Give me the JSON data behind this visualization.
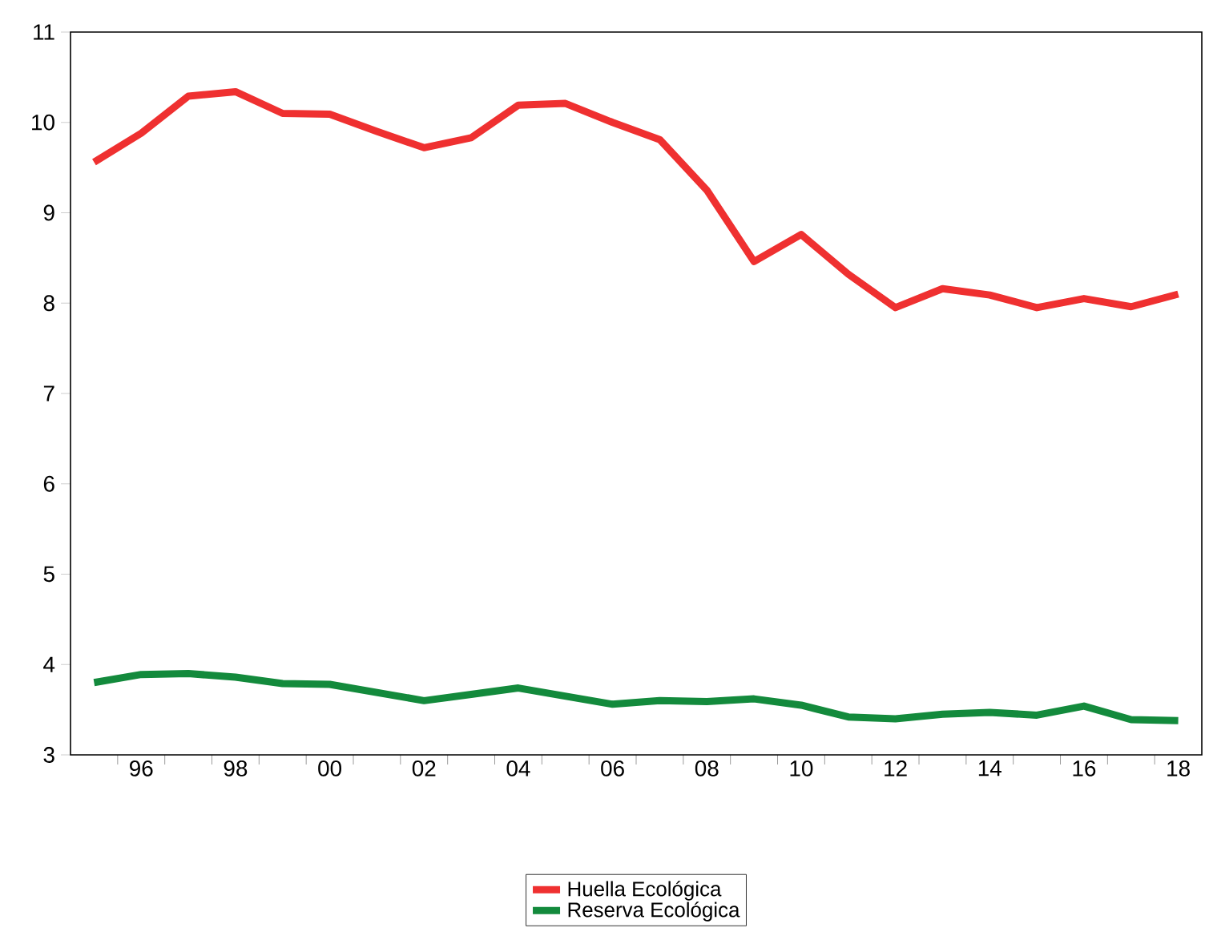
{
  "chart_data": {
    "type": "line",
    "x": [
      1995,
      1996,
      1997,
      1998,
      1999,
      2000,
      2001,
      2002,
      2003,
      2004,
      2005,
      2006,
      2007,
      2008,
      2009,
      2010,
      2011,
      2012,
      2013,
      2014,
      2015,
      2016,
      2017,
      2018
    ],
    "series": [
      {
        "name": "Huella Ecológica",
        "color": "#ef3030",
        "values": [
          9.56,
          9.88,
          10.29,
          10.34,
          10.1,
          10.09,
          9.9,
          9.72,
          9.83,
          10.19,
          10.21,
          10.0,
          9.81,
          9.25,
          8.46,
          8.76,
          8.32,
          7.95,
          8.16,
          8.09,
          7.95,
          8.05,
          7.96,
          8.1
        ]
      },
      {
        "name": "Reserva Ecológica",
        "color": "#138a3c",
        "values": [
          3.8,
          3.89,
          3.9,
          3.86,
          3.79,
          3.78,
          3.69,
          3.6,
          3.67,
          3.74,
          3.65,
          3.56,
          3.6,
          3.59,
          3.62,
          3.55,
          3.42,
          3.4,
          3.45,
          3.47,
          3.44,
          3.54,
          3.39,
          3.38
        ]
      }
    ],
    "xlim": [
      1994.5,
      2018.5
    ],
    "xticks": [
      {
        "value": 1996,
        "label": "96"
      },
      {
        "value": 1998,
        "label": "98"
      },
      {
        "value": 2000,
        "label": "00"
      },
      {
        "value": 2002,
        "label": "02"
      },
      {
        "value": 2004,
        "label": "04"
      },
      {
        "value": 2006,
        "label": "06"
      },
      {
        "value": 2008,
        "label": "08"
      },
      {
        "value": 2010,
        "label": "10"
      },
      {
        "value": 2012,
        "label": "12"
      },
      {
        "value": 2014,
        "label": "14"
      },
      {
        "value": 2016,
        "label": "16"
      },
      {
        "value": 2018,
        "label": "18"
      },
      {
        "value": 1995.5,
        "label": null
      },
      {
        "value": 1996.5,
        "label": null
      },
      {
        "value": 1997.5,
        "label": null
      },
      {
        "value": 1998.5,
        "label": null
      },
      {
        "value": 1999.5,
        "label": null
      },
      {
        "value": 2000.5,
        "label": null
      },
      {
        "value": 2001.5,
        "label": null
      },
      {
        "value": 2002.5,
        "label": null
      },
      {
        "value": 2003.5,
        "label": null
      },
      {
        "value": 2004.5,
        "label": null
      },
      {
        "value": 2005.5,
        "label": null
      },
      {
        "value": 2006.5,
        "label": null
      },
      {
        "value": 2007.5,
        "label": null
      },
      {
        "value": 2008.5,
        "label": null
      },
      {
        "value": 2009.5,
        "label": null
      },
      {
        "value": 2010.5,
        "label": null
      },
      {
        "value": 2011.5,
        "label": null
      },
      {
        "value": 2012.5,
        "label": null
      },
      {
        "value": 2013.5,
        "label": null
      },
      {
        "value": 2014.5,
        "label": null
      },
      {
        "value": 2015.5,
        "label": null
      },
      {
        "value": 2016.5,
        "label": null
      },
      {
        "value": 2017.5,
        "label": null
      }
    ],
    "ylim": [
      3,
      11
    ],
    "yticks": [
      3,
      4,
      5,
      6,
      7,
      8,
      9,
      10,
      11
    ],
    "legend": "bottom",
    "line_style": "solid",
    "marker": "none",
    "grid": false
  }
}
